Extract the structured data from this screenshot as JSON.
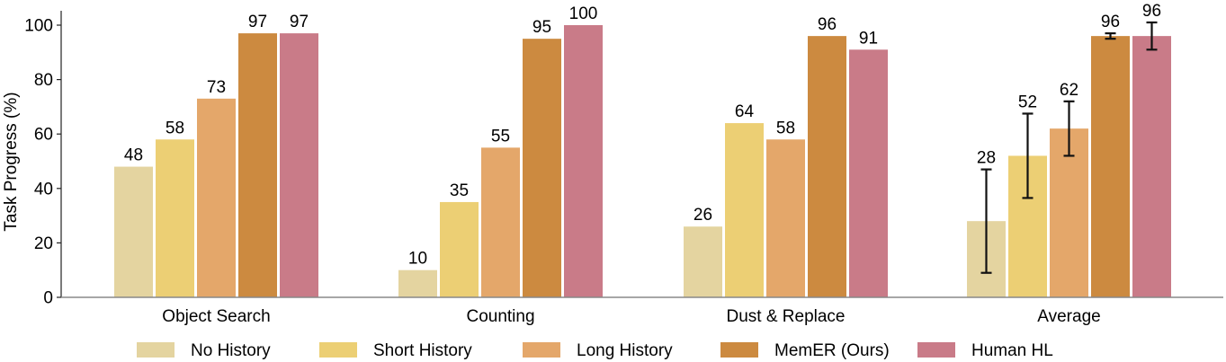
{
  "chart_data": {
    "type": "bar",
    "title": "",
    "xlabel": "",
    "ylabel": "Task Progress (%)",
    "ylim": [
      0,
      105
    ],
    "yticks": [
      0,
      20,
      40,
      60,
      80,
      100
    ],
    "grid": false,
    "legend_position": "bottom",
    "categories": [
      "Object Search",
      "Counting",
      "Dust & Replace",
      "Average"
    ],
    "series": [
      {
        "name": "No History",
        "color": "#E4D4A0",
        "values": [
          48,
          10,
          26,
          28
        ],
        "error": [
          null,
          null,
          null,
          19
        ]
      },
      {
        "name": "Short History",
        "color": "#ECCF74",
        "values": [
          58,
          35,
          64,
          52
        ],
        "error": [
          null,
          null,
          null,
          15.5
        ]
      },
      {
        "name": "Long History",
        "color": "#E4A76A",
        "values": [
          73,
          55,
          58,
          62
        ],
        "error": [
          null,
          null,
          null,
          10
        ]
      },
      {
        "name": "MemER (Ours)",
        "color": "#CC8A40",
        "values": [
          97,
          95,
          96,
          96
        ],
        "error": [
          null,
          null,
          null,
          1
        ]
      },
      {
        "name": "Human HL",
        "color": "#C97B88",
        "values": [
          97,
          100,
          91,
          96
        ],
        "error": [
          null,
          null,
          null,
          5
        ]
      }
    ],
    "data_labels": [
      [
        "48",
        "58",
        "73",
        "97",
        "97"
      ],
      [
        "10",
        "35",
        "55",
        "95",
        "100"
      ],
      [
        "26",
        "64",
        "58",
        "96",
        "91"
      ],
      [
        "28",
        "52",
        "62",
        "96",
        "96"
      ]
    ]
  }
}
